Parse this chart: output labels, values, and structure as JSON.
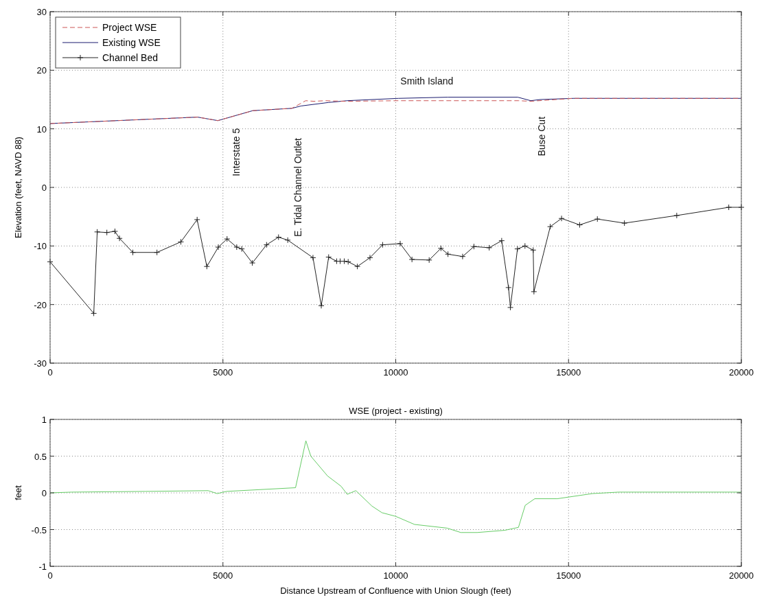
{
  "chart_data": [
    {
      "type": "line",
      "ylabel": "Elevation (feet, NAVD 88)",
      "xlim": [
        0,
        20000
      ],
      "xticks": [
        0,
        5000,
        10000,
        15000,
        20000
      ],
      "ylim": [
        -30,
        30
      ],
      "yticks": [
        -30,
        -20,
        -10,
        0,
        10,
        20,
        30
      ],
      "grid": true,
      "legend": "top left",
      "series": [
        {
          "name": "Project WSE",
          "color": "#cc5555",
          "line_style": "dashed",
          "marker": "none",
          "x": [
            0,
            4267,
            4853,
            5864,
            6995,
            7395,
            7627,
            7958,
            8550,
            10080,
            13560,
            13906,
            15137,
            20000
          ],
          "values": [
            10.9,
            12.0,
            11.4,
            13.1,
            13.5,
            14.8,
            14.7,
            14.8,
            14.7,
            14.8,
            14.8,
            14.7,
            15.2,
            15.2
          ]
        },
        {
          "name": "Existing WSE",
          "color": "#1a1a6e",
          "line_style": "solid",
          "marker": "none",
          "x": [
            0,
            4267,
            4853,
            5864,
            6995,
            7261,
            8059,
            8590,
            10080,
            11508,
            13530,
            13906,
            14180,
            15137,
            20000
          ],
          "values": [
            10.9,
            12.0,
            11.4,
            13.1,
            13.5,
            13.9,
            14.5,
            14.8,
            15.2,
            15.4,
            15.4,
            14.8,
            15.0,
            15.2,
            15.2
          ]
        },
        {
          "name": "Channel Bed",
          "color": "#222222",
          "line_style": "solid",
          "marker": "cross",
          "x": [
            0,
            1263,
            1363,
            1642,
            1875,
            2008,
            2394,
            3092,
            3783,
            4254,
            4535,
            4867,
            5120,
            5399,
            5545,
            5851,
            6263,
            6609,
            6875,
            7606,
            7846,
            8059,
            8291,
            8391,
            8511,
            8624,
            8890,
            9255,
            9621,
            10129,
            10470,
            10967,
            11308,
            11512,
            11935,
            12262,
            12705,
            13066,
            13263,
            13318,
            13522,
            13740,
            13978,
            13999,
            14471,
            14798,
            15322,
            15834,
            16617,
            18130,
            19636,
            20000
          ],
          "values": [
            -12.7,
            -21.5,
            -7.6,
            -7.7,
            -7.5,
            -8.7,
            -11.1,
            -11.1,
            -9.3,
            -5.5,
            -13.5,
            -10.2,
            -8.8,
            -10.2,
            -10.5,
            -12.9,
            -9.8,
            -8.5,
            -9.0,
            -12.0,
            -20.2,
            -11.9,
            -12.6,
            -12.6,
            -12.6,
            -12.7,
            -13.5,
            -12.0,
            -9.8,
            -9.6,
            -12.3,
            -12.4,
            -10.4,
            -11.4,
            -11.8,
            -10.1,
            -10.3,
            -9.1,
            -17.1,
            -20.5,
            -10.5,
            -10.0,
            -10.7,
            -17.8,
            -6.7,
            -5.3,
            -6.4,
            -5.4,
            -6.1,
            -4.8,
            -3.4,
            -3.4
          ]
        }
      ],
      "annotations": [
        "Interstate 5",
        "E. Tidal Channel Outlet",
        "Smith Island",
        "Buse Cut"
      ]
    },
    {
      "type": "line",
      "title": "WSE (project - existing)",
      "xlabel": "Distance Upstream of Confluence with Union Slough (feet)",
      "ylabel": "feet",
      "xlim": [
        0,
        20000
      ],
      "xticks": [
        0,
        5000,
        10000,
        15000,
        20000
      ],
      "ylim": [
        -1,
        1
      ],
      "yticks": [
        -1,
        -0.5,
        0,
        0.5,
        1
      ],
      "grid": true,
      "series": [
        {
          "color": "#66cc66",
          "x": [
            0,
            620,
            2756,
            4573,
            4836,
            5107,
            7101,
            7400,
            7543,
            8027,
            8419,
            8597,
            8846,
            9312,
            9601,
            10000,
            10543,
            11486,
            11884,
            12355,
            13152,
            13551,
            13746,
            14022,
            14674,
            15688,
            16449,
            20000
          ],
          "values": [
            0,
            0.01,
            0.02,
            0.03,
            -0.01,
            0.02,
            0.07,
            0.71,
            0.5,
            0.23,
            0.09,
            -0.02,
            0.03,
            -0.18,
            -0.27,
            -0.32,
            -0.43,
            -0.48,
            -0.54,
            -0.54,
            -0.51,
            -0.47,
            -0.17,
            -0.08,
            -0.08,
            -0.01,
            0.01,
            0.01
          ]
        }
      ]
    }
  ]
}
